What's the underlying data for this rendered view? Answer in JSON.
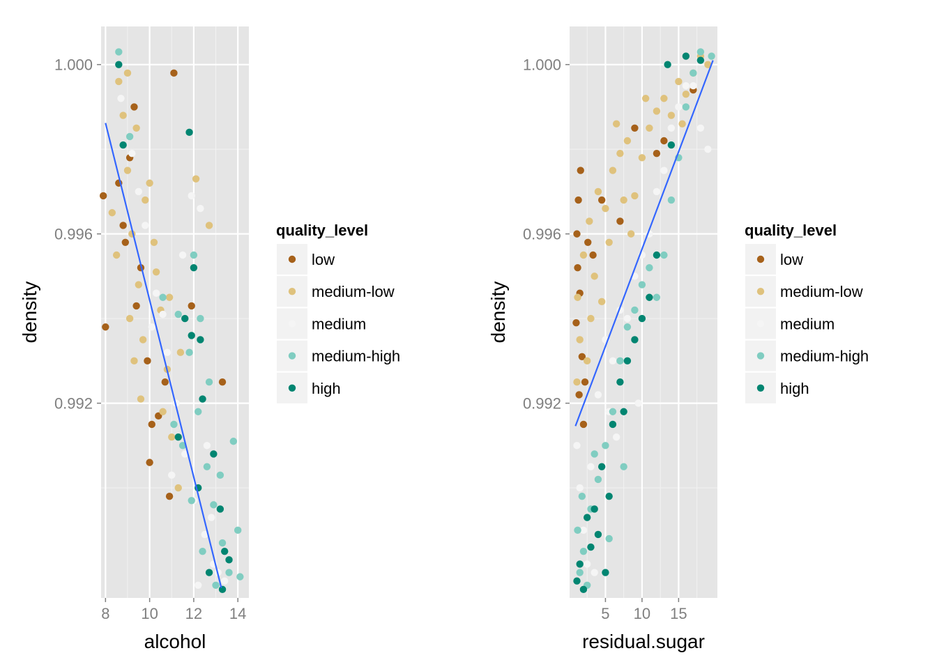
{
  "chart_data": [
    {
      "type": "scatter",
      "title": "",
      "xlabel": "alcohol",
      "ylabel": "density",
      "xlim": [
        7.8,
        14.5
      ],
      "ylim": [
        0.9874,
        1.0009
      ],
      "xticks": [
        {
          "value": 8,
          "label": "8"
        },
        {
          "value": 10,
          "label": "10"
        },
        {
          "value": 12,
          "label": "12"
        },
        {
          "value": 14,
          "label": "14"
        }
      ],
      "yticks": [
        {
          "value": 0.992,
          "label": "0.992"
        },
        {
          "value": 0.996,
          "label": "0.996"
        },
        {
          "value": 1.0,
          "label": "1.000"
        }
      ],
      "grid": true,
      "legend": {
        "title": "quality_level",
        "position": "right",
        "entries": [
          {
            "label": "low",
            "color": "#a6611a"
          },
          {
            "label": "medium-low",
            "color": "#dfc27d"
          },
          {
            "label": "medium",
            "color": "#f5f5f5"
          },
          {
            "label": "medium-high",
            "color": "#80cdc1"
          },
          {
            "label": "high",
            "color": "#018571"
          }
        ]
      },
      "trend_line": {
        "x": [
          8.0,
          13.25
        ],
        "y": [
          0.99862,
          0.98764
        ],
        "color": "#3366ff"
      },
      "series": [
        {
          "name": "low",
          "points": [
            [
              7.9,
              0.9969
            ],
            [
              8.0,
              0.9938
            ],
            [
              8.6,
              0.9972
            ],
            [
              8.8,
              0.9962
            ],
            [
              8.9,
              0.9958
            ],
            [
              9.1,
              0.9978
            ],
            [
              9.4,
              0.9943
            ],
            [
              9.6,
              0.9952
            ],
            [
              9.9,
              0.993
            ],
            [
              10.1,
              0.9915
            ],
            [
              10.4,
              0.9917
            ],
            [
              10.7,
              0.9925
            ],
            [
              10.9,
              0.9898
            ],
            [
              11.1,
              0.9998
            ],
            [
              11.9,
              0.9943
            ],
            [
              13.3,
              0.9925
            ],
            [
              9.3,
              0.999
            ],
            [
              10.0,
              0.9906
            ]
          ]
        },
        {
          "name": "medium-low",
          "points": [
            [
              8.6,
              0.9996
            ],
            [
              8.8,
              0.9988
            ],
            [
              9.0,
              0.9975
            ],
            [
              9.2,
              0.996
            ],
            [
              9.5,
              0.9948
            ],
            [
              9.7,
              0.9935
            ],
            [
              10.0,
              0.9972
            ],
            [
              10.2,
              0.9958
            ],
            [
              10.5,
              0.9942
            ],
            [
              10.8,
              0.9928
            ],
            [
              11.0,
              0.9912
            ],
            [
              11.3,
              0.99
            ],
            [
              12.1,
              0.9973
            ],
            [
              12.7,
              0.9962
            ],
            [
              9.0,
              0.9998
            ],
            [
              9.4,
              0.9985
            ],
            [
              9.8,
              0.9968
            ],
            [
              10.3,
              0.9951
            ],
            [
              9.1,
              0.994
            ],
            [
              9.6,
              0.9921
            ],
            [
              8.5,
              0.9955
            ],
            [
              10.6,
              0.9918
            ],
            [
              11.4,
              0.9932
            ],
            [
              8.3,
              0.9965
            ],
            [
              9.3,
              0.993
            ],
            [
              10.9,
              0.9945
            ]
          ]
        },
        {
          "name": "medium",
          "points": [
            [
              8.7,
              0.9992
            ],
            [
              9.2,
              0.9979
            ],
            [
              9.8,
              0.9962
            ],
            [
              10.3,
              0.9946
            ],
            [
              10.8,
              0.9932
            ],
            [
              11.2,
              0.992
            ],
            [
              11.6,
              0.9908
            ],
            [
              12.0,
              0.9897
            ],
            [
              12.5,
              0.9889
            ],
            [
              12.9,
              0.9882
            ],
            [
              13.4,
              0.9878
            ],
            [
              11.9,
              0.9969
            ],
            [
              12.3,
              0.9966
            ],
            [
              11.5,
              0.9955
            ],
            [
              10.6,
              0.9941
            ],
            [
              12.8,
              0.9893
            ],
            [
              13.1,
              0.988
            ],
            [
              12.2,
              0.9877
            ],
            [
              11.0,
              0.9903
            ],
            [
              9.5,
              0.997
            ],
            [
              10.1,
              0.9938
            ],
            [
              12.6,
              0.991
            ]
          ]
        },
        {
          "name": "medium-high",
          "points": [
            [
              8.6,
              1.0003
            ],
            [
              9.1,
              0.9983
            ],
            [
              10.6,
              0.9945
            ],
            [
              11.3,
              0.9941
            ],
            [
              11.8,
              0.9932
            ],
            [
              12.2,
              0.9918
            ],
            [
              12.6,
              0.9905
            ],
            [
              12.9,
              0.9896
            ],
            [
              13.3,
              0.9887
            ],
            [
              13.6,
              0.988
            ],
            [
              14.0,
              0.989
            ],
            [
              14.1,
              0.9879
            ],
            [
              11.5,
              0.991
            ],
            [
              11.9,
              0.9897
            ],
            [
              12.4,
              0.9885
            ],
            [
              13.2,
              0.9903
            ],
            [
              12.0,
              0.9955
            ],
            [
              12.3,
              0.994
            ],
            [
              13.8,
              0.9911
            ],
            [
              12.7,
              0.9925
            ],
            [
              11.1,
              0.9915
            ],
            [
              13.0,
              0.9877
            ]
          ]
        },
        {
          "name": "high",
          "points": [
            [
              8.6,
              1.0
            ],
            [
              8.8,
              0.9981
            ],
            [
              11.8,
              0.9984
            ],
            [
              12.0,
              0.9952
            ],
            [
              11.9,
              0.9936
            ],
            [
              12.3,
              0.9935
            ],
            [
              12.4,
              0.9921
            ],
            [
              12.9,
              0.9908
            ],
            [
              13.2,
              0.9895
            ],
            [
              13.4,
              0.9885
            ],
            [
              12.7,
              0.988
            ],
            [
              13.3,
              0.9876
            ],
            [
              11.6,
              0.994
            ],
            [
              11.3,
              0.9912
            ],
            [
              12.2,
              0.99
            ],
            [
              13.6,
              0.9883
            ]
          ]
        }
      ]
    },
    {
      "type": "scatter",
      "title": "",
      "xlabel": "residual.sugar",
      "ylabel": "density",
      "xlim": [
        0.1,
        20.3
      ],
      "ylim": [
        0.9874,
        1.0009
      ],
      "xticks": [
        {
          "value": 5,
          "label": "5"
        },
        {
          "value": 10,
          "label": "10"
        },
        {
          "value": 15,
          "label": "15"
        }
      ],
      "yticks": [
        {
          "value": 0.992,
          "label": "0.992"
        },
        {
          "value": 0.996,
          "label": "0.996"
        },
        {
          "value": 1.0,
          "label": "1.000"
        }
      ],
      "grid": true,
      "legend": {
        "title": "quality_level",
        "position": "right",
        "entries": [
          {
            "label": "low",
            "color": "#a6611a"
          },
          {
            "label": "medium-low",
            "color": "#dfc27d"
          },
          {
            "label": "medium",
            "color": "#f5f5f5"
          },
          {
            "label": "medium-high",
            "color": "#80cdc1"
          },
          {
            "label": "high",
            "color": "#018571"
          }
        ]
      },
      "trend_line": {
        "x": [
          0.9,
          19.7
        ],
        "y": [
          0.99146,
          1.0001
        ],
        "color": "#3366ff"
      },
      "series": [
        {
          "name": "low",
          "points": [
            [
              1.1,
              0.996
            ],
            [
              1.2,
              0.9952
            ],
            [
              1.5,
              0.9946
            ],
            [
              1.0,
              0.9939
            ],
            [
              1.8,
              0.9931
            ],
            [
              2.2,
              0.9925
            ],
            [
              1.4,
              0.9922
            ],
            [
              2.6,
              0.9958
            ],
            [
              3.3,
              0.9955
            ],
            [
              4.5,
              0.9968
            ],
            [
              1.3,
              0.9968
            ],
            [
              7.0,
              0.9963
            ],
            [
              9.0,
              0.9985
            ],
            [
              12.0,
              0.9979
            ],
            [
              13.0,
              0.9982
            ],
            [
              1.6,
              0.9975
            ],
            [
              17.0,
              0.9994
            ],
            [
              2.0,
              0.9915
            ]
          ]
        },
        {
          "name": "medium-low",
          "points": [
            [
              1.2,
              0.9945
            ],
            [
              1.5,
              0.9935
            ],
            [
              2.0,
              0.9955
            ],
            [
              2.8,
              0.9963
            ],
            [
              3.5,
              0.995
            ],
            [
              4.0,
              0.997
            ],
            [
              5.0,
              0.9966
            ],
            [
              6.0,
              0.9975
            ],
            [
              7.0,
              0.9979
            ],
            [
              7.5,
              0.9968
            ],
            [
              8.0,
              0.9982
            ],
            [
              9.0,
              0.9969
            ],
            [
              10.0,
              0.9978
            ],
            [
              11.0,
              0.9985
            ],
            [
              12.0,
              0.9989
            ],
            [
              13.0,
              0.9992
            ],
            [
              14.0,
              0.9988
            ],
            [
              15.0,
              0.9996
            ],
            [
              16.0,
              0.9993
            ],
            [
              17.0,
              0.9998
            ],
            [
              18.0,
              1.0002
            ],
            [
              19.0,
              1.0
            ],
            [
              6.5,
              0.9986
            ],
            [
              4.5,
              0.9944
            ],
            [
              2.5,
              0.993
            ],
            [
              3.0,
              0.994
            ],
            [
              5.5,
              0.9958
            ],
            [
              8.5,
              0.996
            ],
            [
              10.5,
              0.9992
            ],
            [
              15.5,
              0.9986
            ],
            [
              1.1,
              0.9925
            ]
          ]
        },
        {
          "name": "medium",
          "points": [
            [
              1.1,
              0.991
            ],
            [
              1.5,
              0.99
            ],
            [
              2.0,
              0.989
            ],
            [
              3.0,
              0.9905
            ],
            [
              4.0,
              0.9922
            ],
            [
              5.0,
              0.9935
            ],
            [
              6.0,
              0.993
            ],
            [
              7.0,
              0.9942
            ],
            [
              8.0,
              0.994
            ],
            [
              9.0,
              0.995
            ],
            [
              10.0,
              0.9955
            ],
            [
              11.0,
              0.996
            ],
            [
              12.0,
              0.997
            ],
            [
              13.0,
              0.9975
            ],
            [
              14.0,
              0.9985
            ],
            [
              15.0,
              0.999
            ],
            [
              16.0,
              0.9995
            ],
            [
              17.0,
              0.9995
            ],
            [
              18.0,
              0.9985
            ],
            [
              19.0,
              0.998
            ],
            [
              5.5,
              0.9918
            ],
            [
              9.5,
              0.992
            ],
            [
              2.5,
              0.9882
            ],
            [
              3.5,
              0.988
            ],
            [
              6.5,
              0.9912
            ]
          ]
        },
        {
          "name": "medium-high",
          "points": [
            [
              1.2,
              0.989
            ],
            [
              1.5,
              0.988
            ],
            [
              2.0,
              0.9885
            ],
            [
              3.0,
              0.9895
            ],
            [
              4.0,
              0.9902
            ],
            [
              5.0,
              0.991
            ],
            [
              6.0,
              0.9918
            ],
            [
              7.0,
              0.993
            ],
            [
              8.0,
              0.9938
            ],
            [
              9.0,
              0.9942
            ],
            [
              10.0,
              0.9948
            ],
            [
              11.0,
              0.9952
            ],
            [
              12.0,
              0.9945
            ],
            [
              13.0,
              0.9955
            ],
            [
              14.0,
              0.9968
            ],
            [
              15.0,
              0.9978
            ],
            [
              16.0,
              0.999
            ],
            [
              17.0,
              0.9998
            ],
            [
              18.0,
              1.0003
            ],
            [
              19.5,
              1.0002
            ],
            [
              5.5,
              0.9888
            ],
            [
              7.5,
              0.9905
            ],
            [
              3.5,
              0.9908
            ],
            [
              2.5,
              0.9877
            ],
            [
              1.8,
              0.9898
            ]
          ]
        },
        {
          "name": "high",
          "points": [
            [
              1.1,
              0.9878
            ],
            [
              1.5,
              0.9882
            ],
            [
              2.0,
              0.9876
            ],
            [
              2.5,
              0.9893
            ],
            [
              3.0,
              0.9886
            ],
            [
              4.0,
              0.9889
            ],
            [
              5.0,
              0.988
            ],
            [
              5.5,
              0.9898
            ],
            [
              6.0,
              0.9915
            ],
            [
              7.0,
              0.9925
            ],
            [
              8.0,
              0.993
            ],
            [
              9.0,
              0.9935
            ],
            [
              10.0,
              0.994
            ],
            [
              11.0,
              0.9945
            ],
            [
              12.0,
              0.9955
            ],
            [
              14.0,
              0.9981
            ],
            [
              13.5,
              1.0
            ],
            [
              16.0,
              1.0002
            ],
            [
              18.0,
              1.0001
            ],
            [
              4.5,
              0.9905
            ],
            [
              3.5,
              0.9895
            ],
            [
              7.5,
              0.9918
            ]
          ]
        }
      ]
    }
  ]
}
